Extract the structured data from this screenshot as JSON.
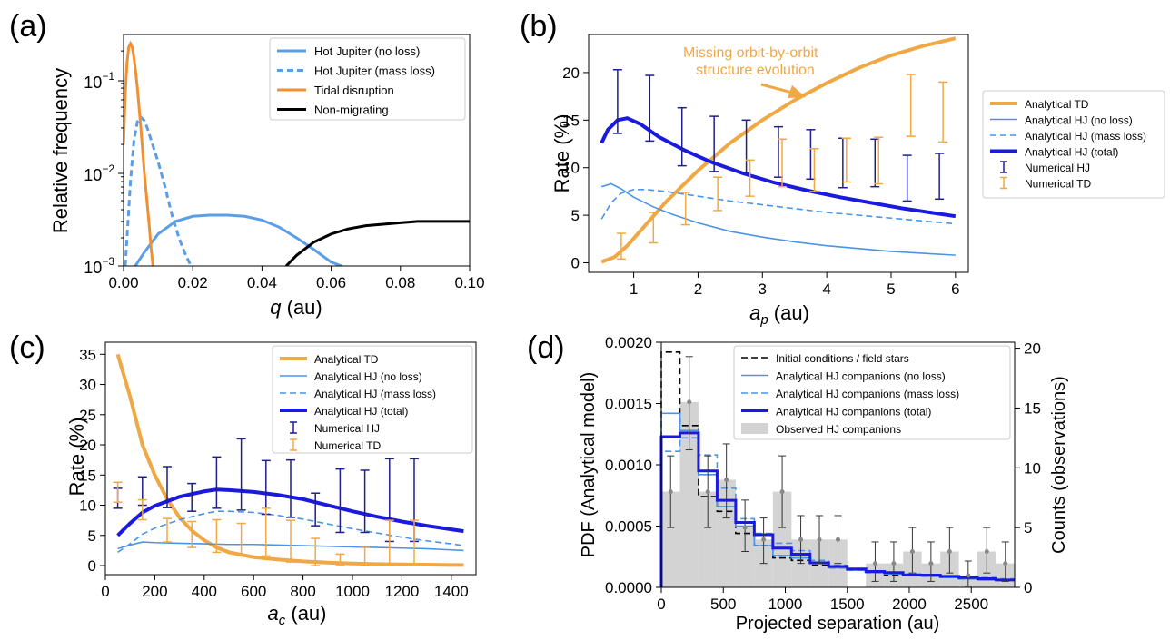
{
  "chart_data": [
    {
      "id": "a",
      "type": "line",
      "panel_label": "(a)",
      "xlabel": "q (au)",
      "ylabel": "Relative frequency",
      "yscale": "log",
      "xlim": [
        0,
        0.1
      ],
      "ylim": [
        0.001,
        0.3
      ],
      "xticks": [
        "0.00",
        "0.02",
        "0.04",
        "0.06",
        "0.08",
        "0.10"
      ],
      "yticks": [
        "10^-3",
        "10^-2",
        "10^-1"
      ],
      "legend_position": "top-right",
      "series": [
        {
          "name": "Hot Jupiter (no loss)",
          "color": "#5a9ee8",
          "style": "solid",
          "x": [
            0.0,
            0.003,
            0.006,
            0.01,
            0.015,
            0.02,
            0.025,
            0.03,
            0.035,
            0.04,
            0.045,
            0.05,
            0.055,
            0.06,
            0.063
          ],
          "y": [
            0.0008,
            0.00095,
            0.0014,
            0.0022,
            0.003,
            0.0034,
            0.0035,
            0.0035,
            0.0034,
            0.0031,
            0.0026,
            0.002,
            0.0015,
            0.0011,
            0.001
          ]
        },
        {
          "name": "Hot Jupiter (mass loss)",
          "color": "#5a9ee8",
          "style": "dashed",
          "x": [
            0.0005,
            0.001,
            0.002,
            0.003,
            0.004,
            0.005,
            0.006,
            0.007,
            0.008,
            0.01,
            0.012,
            0.014,
            0.016,
            0.018,
            0.0195
          ],
          "y": [
            0.001,
            0.002,
            0.008,
            0.022,
            0.035,
            0.039,
            0.036,
            0.029,
            0.022,
            0.013,
            0.007,
            0.0035,
            0.002,
            0.0013,
            0.001
          ]
        },
        {
          "name": "Tidal disruption",
          "color": "#ef9035",
          "style": "solid",
          "x": [
            0.0,
            0.0005,
            0.001,
            0.0015,
            0.002,
            0.0025,
            0.003,
            0.0035,
            0.004,
            0.005,
            0.006,
            0.007,
            0.0075,
            0.008,
            0.0085
          ],
          "y": [
            0.02,
            0.07,
            0.15,
            0.22,
            0.24,
            0.22,
            0.17,
            0.12,
            0.08,
            0.03,
            0.01,
            0.004,
            0.0025,
            0.0015,
            0.001
          ]
        },
        {
          "name": "Non-migrating",
          "color": "#000000",
          "style": "solid",
          "x": [
            0.047,
            0.05,
            0.055,
            0.06,
            0.065,
            0.07,
            0.075,
            0.08,
            0.085,
            0.09,
            0.095,
            0.1
          ],
          "y": [
            0.001,
            0.0013,
            0.0018,
            0.0022,
            0.0025,
            0.0027,
            0.0028,
            0.0029,
            0.003,
            0.003,
            0.003,
            0.003
          ]
        }
      ]
    },
    {
      "id": "b",
      "type": "line",
      "panel_label": "(b)",
      "xlabel": "a_p (au)",
      "ylabel": "Rate (%)",
      "xlim": [
        0.3,
        6.2
      ],
      "ylim": [
        -1,
        24
      ],
      "xticks": [
        1,
        2,
        3,
        4,
        5,
        6
      ],
      "yticks": [
        0,
        5,
        10,
        15,
        20
      ],
      "legend_position": "outside-right",
      "annotation": {
        "text_lines": [
          "Missing orbit-by-orbit",
          "structure evolution"
        ],
        "color": "#f0a845"
      },
      "series": [
        {
          "name": "Analytical TD",
          "color": "#f0a845",
          "style": "solid",
          "width": "thick",
          "x": [
            0.5,
            0.7,
            0.9,
            1.2,
            1.5,
            2.0,
            2.5,
            3.0,
            3.5,
            4.0,
            4.5,
            5.0,
            5.5,
            6.0
          ],
          "y": [
            0.1,
            0.6,
            1.8,
            4.1,
            6.4,
            9.7,
            12.6,
            15.0,
            17.1,
            18.9,
            20.5,
            21.8,
            22.8,
            23.6
          ]
        },
        {
          "name": "Analytical HJ (no loss)",
          "color": "#4a94e8",
          "style": "solid",
          "width": "thin",
          "x": [
            0.5,
            0.65,
            0.8,
            1.0,
            1.3,
            1.6,
            2.0,
            2.5,
            3.0,
            3.5,
            4.0,
            4.5,
            5.0,
            5.5,
            6.0
          ],
          "y": [
            8.0,
            8.3,
            7.8,
            6.9,
            5.9,
            5.1,
            4.2,
            3.3,
            2.7,
            2.2,
            1.8,
            1.5,
            1.2,
            1.0,
            0.8
          ]
        },
        {
          "name": "Analytical HJ (mass loss)",
          "color": "#4a94e8",
          "style": "dashed",
          "width": "thin",
          "x": [
            0.5,
            0.65,
            0.8,
            1.0,
            1.2,
            1.5,
            2.0,
            2.5,
            3.0,
            3.5,
            4.0,
            4.5,
            5.0,
            5.5,
            6.0
          ],
          "y": [
            4.6,
            6.3,
            7.3,
            7.7,
            7.7,
            7.5,
            7.0,
            6.5,
            6.1,
            5.7,
            5.3,
            5.0,
            4.7,
            4.4,
            4.1
          ]
        },
        {
          "name": "Analytical HJ (total)",
          "color": "#1a1adf",
          "style": "solid",
          "width": "thick",
          "x": [
            0.5,
            0.6,
            0.75,
            0.9,
            1.1,
            1.4,
            1.8,
            2.2,
            2.7,
            3.2,
            3.7,
            4.2,
            4.7,
            5.2,
            5.6,
            6.0
          ],
          "y": [
            12.6,
            14.0,
            15.0,
            15.2,
            14.6,
            13.2,
            11.8,
            10.6,
            9.4,
            8.4,
            7.6,
            6.9,
            6.3,
            5.7,
            5.3,
            4.9
          ]
        }
      ],
      "errorbars": [
        {
          "name": "Numerical HJ",
          "color": "#1f1f8c",
          "x": [
            0.75,
            1.25,
            1.75,
            2.25,
            2.75,
            3.25,
            3.75,
            4.25,
            4.75,
            5.25,
            5.75
          ],
          "low": [
            13.6,
            12.8,
            10.2,
            9.6,
            9.5,
            9.0,
            8.8,
            7.9,
            8.0,
            6.5,
            6.7
          ],
          "high": [
            20.3,
            19.7,
            16.3,
            15.4,
            15.0,
            14.3,
            14.0,
            13.1,
            13.0,
            11.3,
            11.5
          ]
        },
        {
          "name": "Numerical TD",
          "color": "#f0a845",
          "x": [
            0.75,
            1.25,
            1.75,
            2.25,
            2.75,
            3.25,
            3.75,
            4.25,
            4.75,
            5.25,
            5.75
          ],
          "low": [
            0.4,
            2.1,
            4.0,
            5.5,
            7.0,
            8.0,
            7.5,
            8.5,
            8.3,
            13.3,
            12.7
          ],
          "high": [
            3.1,
            5.3,
            7.4,
            9.0,
            10.8,
            13.0,
            12.0,
            13.1,
            13.2,
            19.8,
            19.0
          ]
        }
      ]
    },
    {
      "id": "c",
      "type": "line",
      "panel_label": "(c)",
      "xlabel": "a_c (au)",
      "ylabel": "Rate (%)",
      "xlim": [
        0,
        1500
      ],
      "ylim": [
        -1.5,
        37
      ],
      "xticks": [
        0,
        200,
        400,
        600,
        800,
        1000,
        1200,
        1400
      ],
      "yticks": [
        0,
        5,
        10,
        15,
        20,
        25,
        30,
        35
      ],
      "legend_position": "top-right",
      "series": [
        {
          "name": "Analytical TD",
          "color": "#f0a845",
          "style": "solid",
          "width": "thick",
          "x": [
            50,
            100,
            150,
            200,
            250,
            300,
            350,
            400,
            450,
            500,
            600,
            700,
            800,
            900,
            1000,
            1100,
            1200,
            1300,
            1400,
            1450
          ],
          "y": [
            35.0,
            28.0,
            20.0,
            15.0,
            11.0,
            8.0,
            5.8,
            4.2,
            3.0,
            2.2,
            1.4,
            1.0,
            0.7,
            0.5,
            0.35,
            0.25,
            0.2,
            0.15,
            0.1,
            0.1
          ]
        },
        {
          "name": "Analytical HJ (no loss)",
          "color": "#4a94e8",
          "style": "solid",
          "width": "thin",
          "x": [
            50,
            100,
            150,
            200,
            300,
            400,
            500,
            600,
            700,
            800,
            900,
            1000,
            1100,
            1200,
            1300,
            1400,
            1450
          ],
          "y": [
            2.8,
            3.4,
            3.9,
            3.8,
            3.7,
            3.6,
            3.5,
            3.5,
            3.4,
            3.3,
            3.2,
            3.1,
            3.0,
            2.9,
            2.8,
            2.6,
            2.5
          ]
        },
        {
          "name": "Analytical HJ (mass loss)",
          "color": "#4a94e8",
          "style": "dashed",
          "width": "thin",
          "x": [
            50,
            100,
            150,
            200,
            300,
            400,
            450,
            500,
            600,
            700,
            800,
            900,
            1000,
            1100,
            1200,
            1300,
            1400,
            1450
          ],
          "y": [
            2.2,
            3.6,
            5.2,
            6.2,
            7.6,
            8.6,
            9.0,
            9.0,
            8.8,
            8.3,
            7.7,
            6.9,
            6.1,
            5.4,
            4.7,
            4.1,
            3.6,
            3.3
          ]
        },
        {
          "name": "Analytical HJ (total)",
          "color": "#1a1adf",
          "style": "solid",
          "width": "thick",
          "x": [
            50,
            100,
            150,
            200,
            300,
            400,
            450,
            500,
            600,
            700,
            800,
            900,
            1000,
            1100,
            1200,
            1300,
            1400,
            1450
          ],
          "y": [
            5.0,
            7.0,
            8.8,
            9.9,
            11.4,
            12.3,
            12.6,
            12.5,
            12.2,
            11.7,
            11.0,
            10.0,
            9.0,
            8.1,
            7.3,
            6.6,
            6.0,
            5.7
          ]
        }
      ],
      "errorbars": [
        {
          "name": "Numerical HJ",
          "color": "#1f1f8c",
          "x": [
            50,
            150,
            250,
            350,
            450,
            550,
            650,
            750,
            850,
            950,
            1050,
            1150,
            1250
          ],
          "low": [
            9.5,
            10.0,
            9.6,
            9.0,
            9.5,
            9.2,
            8.5,
            8.0,
            6.6,
            5.5,
            5.5,
            4.0,
            4.0
          ],
          "high": [
            12.8,
            14.7,
            16.4,
            13.6,
            18.0,
            21.0,
            17.4,
            17.5,
            12.0,
            16.0,
            15.8,
            17.7,
            17.7
          ]
        },
        {
          "name": "Numerical TD",
          "color": "#f0a845",
          "x": [
            50,
            150,
            250,
            350,
            450,
            550,
            650,
            750,
            850,
            950,
            1050,
            1150,
            1250
          ],
          "low": [
            10.5,
            7.6,
            3.9,
            3.0,
            2.2,
            1.6,
            1.6,
            0.6,
            0.0,
            0.0,
            0.0,
            0.0,
            0.0
          ],
          "high": [
            13.8,
            10.9,
            7.8,
            7.3,
            7.6,
            7.0,
            9.5,
            7.5,
            4.5,
            1.9,
            3.0,
            7.5,
            7.5
          ]
        }
      ]
    },
    {
      "id": "d",
      "type": "bar",
      "panel_label": "(d)",
      "xlabel": "Projected separation (au)",
      "ylabel": "PDF (Analytical model)",
      "y2label": "Counts (observations)",
      "xlim": [
        0,
        2850
      ],
      "ylim": [
        0,
        0.002
      ],
      "y2lim": [
        0,
        20.5
      ],
      "xticks": [
        0,
        500,
        1000,
        1500,
        2000,
        2500
      ],
      "yticks": [
        "0.0000",
        "0.0005",
        "0.0010",
        "0.0015",
        "0.0020"
      ],
      "y2ticks": [
        0,
        5,
        10,
        15,
        20
      ],
      "legend_position": "top-right",
      "bin_edges": [
        0,
        150,
        300,
        450,
        600,
        750,
        900,
        1050,
        1200,
        1350,
        1500,
        1650,
        1800,
        1950,
        2100,
        2250,
        2400,
        2550,
        2700,
        2850
      ],
      "bar_counts": [
        8,
        15.5,
        8,
        9,
        5,
        4,
        8,
        4,
        4,
        4,
        0,
        2,
        2,
        3,
        2,
        3,
        1,
        3,
        2
      ],
      "obs_points": {
        "color": "#888888",
        "x": [
          75,
          225,
          375,
          525,
          675,
          825,
          975,
          1125,
          1275,
          1425,
          1725,
          1875,
          2025,
          2175,
          2325,
          2475,
          2625,
          2775
        ],
        "y": [
          8,
          15.5,
          8,
          9,
          5,
          4,
          8,
          4,
          4,
          4,
          2,
          2,
          3,
          2,
          3,
          1,
          3,
          2
        ],
        "low": [
          5,
          11.5,
          5,
          5.8,
          3,
          2,
          5,
          2,
          2,
          2,
          0.5,
          0.5,
          1.2,
          0.5,
          1.2,
          0.1,
          1.2,
          0.5
        ],
        "high": [
          11,
          19.3,
          11,
          12,
          7.3,
          5.8,
          11,
          6,
          6,
          6,
          3.8,
          3.8,
          5,
          3.8,
          5,
          2.2,
          5,
          3.8
        ]
      },
      "series": [
        {
          "name": "Initial conditions / field stars",
          "color": "#000000",
          "style": "dashed",
          "width": "thin",
          "values": [
            0.00192,
            0.00132,
            0.00074,
            0.00062,
            0.00044,
            0.00034,
            0.00024,
            0.00022,
            0.00018,
            0.00016,
            0.00014,
            0.00012,
            0.0001,
            0.0001,
            9e-05,
            8e-05,
            7e-05,
            7e-05,
            6e-05
          ]
        },
        {
          "name": "Analytical HJ companions (no loss)",
          "color": "#4a94e8",
          "style": "solid",
          "width": "thin",
          "values": [
            0.00142,
            0.00128,
            0.00092,
            0.00066,
            0.0005,
            0.00034,
            0.00026,
            0.00024,
            0.0002,
            0.00016,
            0.00014,
            0.00012,
            0.00011,
            0.0001,
            9e-05,
            8e-05,
            7e-05,
            6e-05,
            6e-05
          ]
        },
        {
          "name": "Analytical HJ companions (mass loss)",
          "color": "#4a94e8",
          "style": "dashed",
          "width": "thin",
          "values": [
            0.00111,
            0.00122,
            0.00108,
            0.00081,
            0.00056,
            0.00044,
            0.00036,
            0.0003,
            0.00022,
            0.00018,
            0.00015,
            0.00013,
            0.00012,
            0.00011,
            0.0001,
            9e-05,
            8e-05,
            8e-05,
            7e-05
          ]
        },
        {
          "name": "Analytical HJ companions (total)",
          "color": "#1a1adf",
          "style": "solid",
          "width": "thick",
          "values": [
            0.00123,
            0.00126,
            0.00095,
            0.00071,
            0.00053,
            0.00043,
            0.00032,
            0.00027,
            0.0002,
            0.00017,
            0.00015,
            0.00013,
            0.00012,
            0.0001,
            0.0001,
            9e-05,
            8e-05,
            7e-05,
            6e-05
          ]
        }
      ],
      "bar_series_name": "Observed HJ companions",
      "bar_color": "#d3d3d3"
    }
  ]
}
